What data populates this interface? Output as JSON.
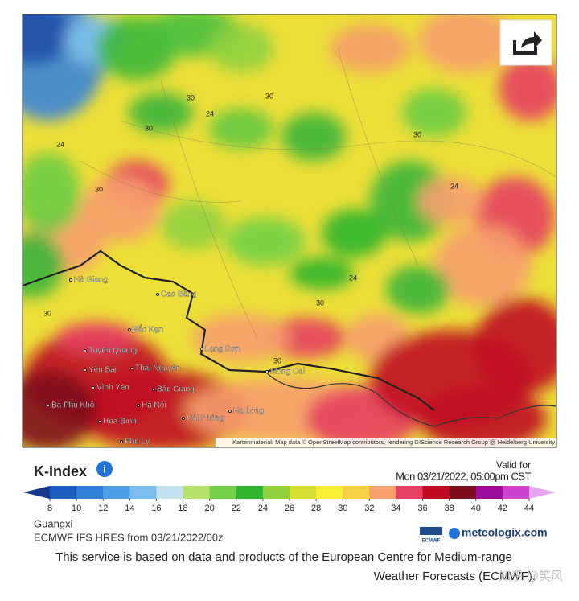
{
  "map": {
    "place_labels": [
      "Hà Giang",
      "Cao Bằng",
      "Bắc Kạn",
      "Lạng Sơn",
      "Tuyên Quang",
      "Yên Bái",
      "Thái Nguyên",
      "Vĩnh Yên",
      "Bắc Giang",
      "Hà Nội",
      "Hải Phòng",
      "Ha Long",
      "Hòa Bình",
      "Phủ Lý",
      "Mong Cai",
      "Ba Phủ Khô"
    ],
    "contour_labels": [
      "30",
      "24",
      "30",
      "24",
      "30",
      "24",
      "30",
      "30",
      "30",
      "24",
      "30",
      "30"
    ],
    "attribution": "Kartenmaterial: Map data © OpenStreetMap contributors, rendering GIScience Research Group @ Heidelberg University"
  },
  "legend": {
    "title": "K-Index",
    "valid_label": "Valid for",
    "valid_time": "Mon 03/21/2022, 05:00pm CST",
    "ticks": [
      8,
      10,
      12,
      14,
      16,
      18,
      20,
      22,
      24,
      26,
      28,
      30,
      32,
      34,
      36,
      38,
      40,
      42,
      44
    ],
    "colors": [
      "#17388c",
      "#1f5cc0",
      "#2f7ed8",
      "#4c9fe6",
      "#7cbdef",
      "#c2e2f2",
      "#b6e36a",
      "#74d046",
      "#2fb52f",
      "#93d03e",
      "#d7df35",
      "#f6ef33",
      "#f6cf45",
      "#f6a06e",
      "#e64162",
      "#bf0a22",
      "#7e0d1c",
      "#9d0b9d",
      "#cd42cf",
      "#e6a4f0"
    ]
  },
  "region": "Guangxi",
  "model": "ECMWF IFS HRES from 03/21/2022/00z",
  "logos": {
    "ecmwf": "ECMWF",
    "meteologix": "meteologix.com"
  },
  "footer": {
    "line1": "This service is based on data and products of the European Centre for Medium-range",
    "line2": "Weather Forecasts (ECMWF)."
  },
  "watermark": "知乎 @笑风"
}
